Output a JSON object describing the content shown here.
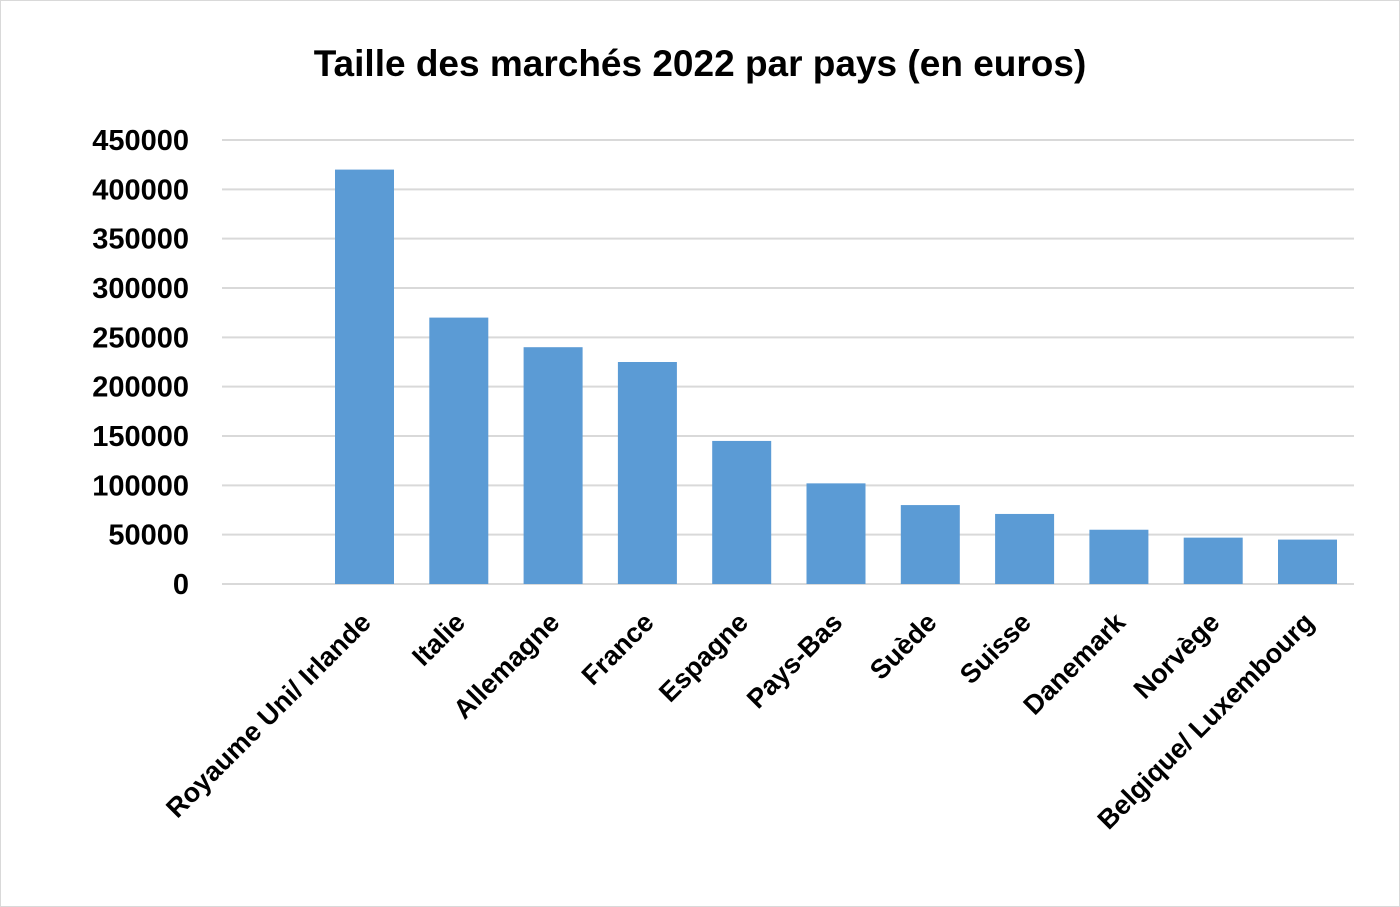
{
  "chart_data": {
    "type": "bar",
    "title": "Taille des marchés 2022 par pays (en euros)",
    "xlabel": "",
    "ylabel": "",
    "categories": [
      "Royaume Uni/ Irlande",
      "Italie",
      "Allemagne",
      "France",
      "Espagne",
      "Pays-Bas",
      "Suède",
      "Suisse",
      "Danemark",
      "Norvège",
      "Belgique/ Luxembourg"
    ],
    "values": [
      420000,
      270000,
      240000,
      225000,
      145000,
      102000,
      80000,
      71000,
      55000,
      47000,
      45000
    ],
    "ylim": [
      0,
      450000
    ],
    "yticks": [
      "0",
      "50000",
      "100000",
      "150000",
      "200000",
      "250000",
      "300000",
      "350000",
      "400000",
      "450000"
    ],
    "grid": true,
    "legend": "none",
    "colors": {
      "bar": "#5b9bd5",
      "grid": "#d9d9d9",
      "axis": "#d9d9d9"
    }
  }
}
